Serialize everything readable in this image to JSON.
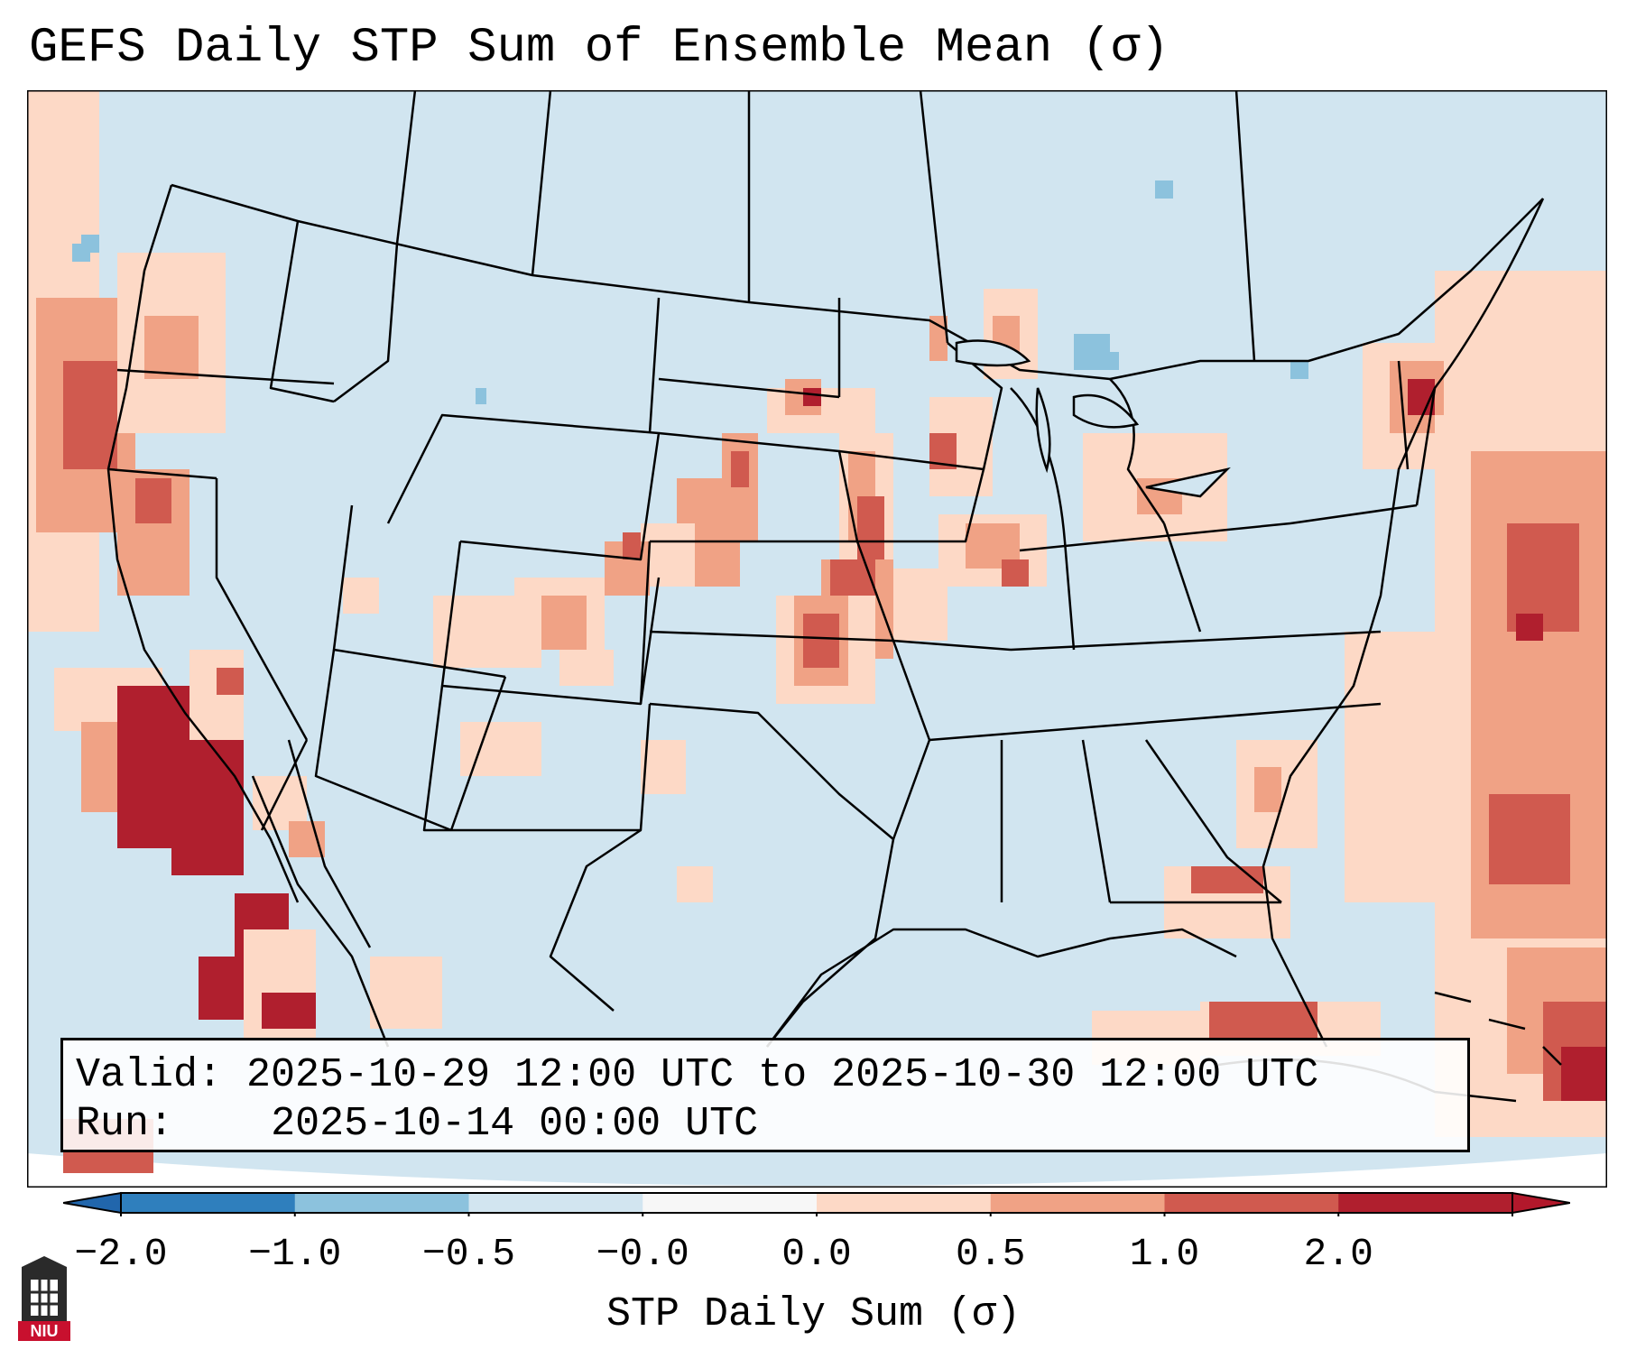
{
  "title": "GEFS Daily STP Sum of Ensemble Mean (σ)",
  "info": {
    "valid_label": "Valid:",
    "valid_value": "2025-10-29 12:00 UTC to 2025-10-30 12:00 UTC",
    "run_label": "Run:",
    "run_value": "2025-10-14 00:00 UTC"
  },
  "colorbar": {
    "label": "STP Daily Sum (σ)",
    "tick_labels": [
      "−2.0",
      "−1.0",
      "−0.5",
      "−0.0",
      "0.0",
      "0.5",
      "1.0",
      "2.0"
    ],
    "colors": [
      "#2f7fbd",
      "#8cc2dd",
      "#d2e5f0",
      "#f7f7f7",
      "#fdd9c6",
      "#f0a285",
      "#d05a4f",
      "#b01f2e"
    ],
    "extend_low_color": "#2166ac",
    "extend_high_color": "#b2182b"
  },
  "map": {
    "background_color": "#d1e5f0",
    "border_color": "#000000"
  },
  "logo": {
    "text": "NIU"
  }
}
